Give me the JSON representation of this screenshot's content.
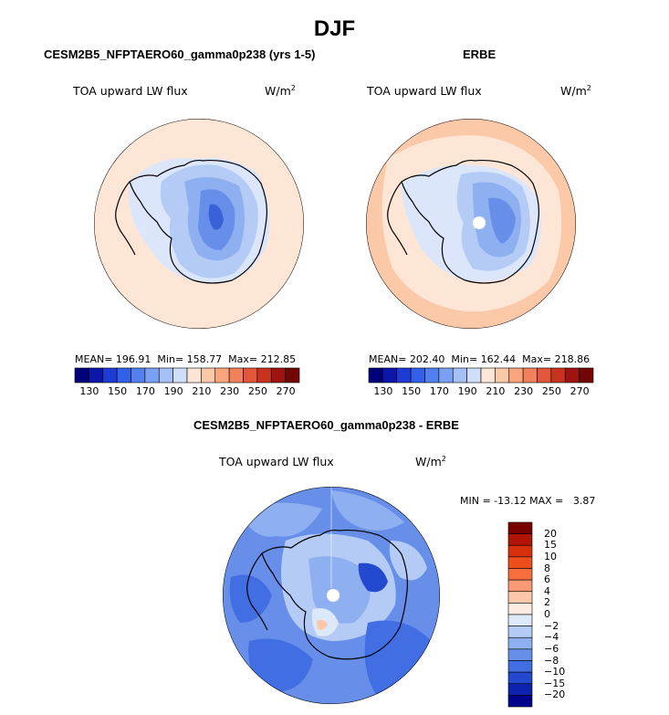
{
  "figure": {
    "season": "DJF"
  },
  "chart_data": [
    {
      "type": "heatmap",
      "projection": "south-polar stereographic",
      "title": "CESM2B5_NFPTAERO60_gamma0p238 (yrs 1-5)",
      "variable": "TOA upward LW flux",
      "units_label": "W/m",
      "units_exp": "2",
      "stats": {
        "mean_label": "MEAN=",
        "mean": "196.91",
        "min_label": "Min=",
        "min": "158.77",
        "max_label": "Max=",
        "max": "212.85"
      },
      "colorbar": {
        "orientation": "horizontal",
        "tick_labels": [
          "130",
          "150",
          "170",
          "190",
          "210",
          "230",
          "250",
          "270"
        ],
        "colors": [
          "#00007a",
          "#0c16a8",
          "#1f3bd6",
          "#3360e8",
          "#5480ee",
          "#7aa0f2",
          "#a5c0f6",
          "#cfdffa",
          "#fde6d6",
          "#fbc8a8",
          "#f8a57e",
          "#f2805b",
          "#e4563a",
          "#c83320",
          "#9f1410",
          "#720606"
        ]
      }
    },
    {
      "type": "heatmap",
      "projection": "south-polar stereographic",
      "title": "ERBE",
      "variable": "TOA upward LW flux",
      "units_label": "W/m",
      "units_exp": "2",
      "stats": {
        "mean_label": "MEAN=",
        "mean": "202.40",
        "min_label": "Min=",
        "min": "162.44",
        "max_label": "Max=",
        "max": "218.86"
      },
      "colorbar": {
        "orientation": "horizontal",
        "tick_labels": [
          "130",
          "150",
          "170",
          "190",
          "210",
          "230",
          "250",
          "270"
        ],
        "colors": [
          "#00007a",
          "#0c16a8",
          "#1f3bd6",
          "#3360e8",
          "#5480ee",
          "#7aa0f2",
          "#a5c0f6",
          "#cfdffa",
          "#fde6d6",
          "#fbc8a8",
          "#f8a57e",
          "#f2805b",
          "#e4563a",
          "#c83320",
          "#9f1410",
          "#720606"
        ]
      }
    },
    {
      "type": "heatmap",
      "projection": "south-polar stereographic",
      "title": "CESM2B5_NFPTAERO60_gamma0p238 - ERBE",
      "variable": "TOA upward LW flux",
      "units_label": "W/m",
      "units_exp": "2",
      "stats_text": "MIN = -13.12 MAX =   3.87",
      "colorbar": {
        "orientation": "vertical",
        "tick_labels": [
          "20",
          "15",
          "10",
          "8",
          "6",
          "4",
          "2",
          "0",
          "−2",
          "−4",
          "−6",
          "−8",
          "−10",
          "−15",
          "−20"
        ],
        "colors": [
          "#7a0000",
          "#b01405",
          "#d8300c",
          "#ef4d1c",
          "#f76d3e",
          "#fb9a74",
          "#fdc7aa",
          "#fdeae0",
          "#dce9fb",
          "#b4cbf5",
          "#8eaff0",
          "#678fea",
          "#416ee2",
          "#2249cf",
          "#0e22b0",
          "#00008a"
        ]
      }
    }
  ]
}
